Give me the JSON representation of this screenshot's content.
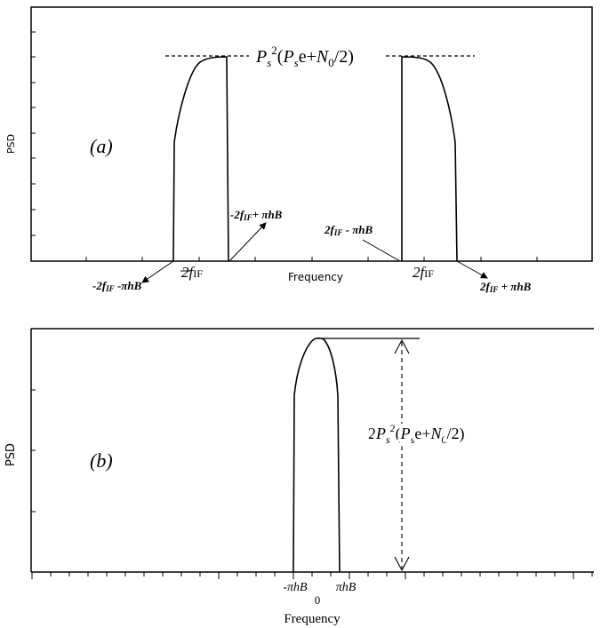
{
  "panel_a": {
    "label": "(a)",
    "ylabel": "PSD",
    "xlabel": "Frequency",
    "peak_label": {
      "base": "P",
      "sub": "s",
      "sup": "2",
      "open": "(",
      "p": "P",
      "p_sub": "s",
      "mid": "e+",
      "n": "N",
      "n_sub": "0",
      "close": "/2)"
    },
    "annotations": {
      "neg_center": "2f",
      "neg_center_sub": "IF",
      "neg_center_prefix": "-",
      "pos_center": "2f",
      "pos_center_sub": "IF",
      "neg_left_a": "-2f",
      "neg_left_a_sub": "IF",
      "neg_left_b": " -πhB",
      "neg_right_a": "-2f",
      "neg_right_a_sub": "IF",
      "neg_right_b": "+ πhB",
      "pos_left_a": "2f",
      "pos_left_a_sub": "IF",
      "pos_left_b": " - πhB",
      "pos_right_a": "2f",
      "pos_right_a_sub": "IF",
      "pos_right_b": " + πhB"
    }
  },
  "panel_b": {
    "label": "(b)",
    "ylabel": "PSD",
    "xlabel": "Frequency",
    "zero_tick": "0",
    "left_tick": "-πhB",
    "right_tick": "πhB",
    "peak_label": {
      "coef": "2",
      "base": "P",
      "sub": "s",
      "sup": "2",
      "open": "(",
      "p": "P",
      "p_sub": "s",
      "mid": "e+",
      "n": "N",
      "n_sub": "0",
      "close": "/2)"
    }
  },
  "colors": {
    "stroke": "#000000",
    "background": "#ffffff"
  }
}
